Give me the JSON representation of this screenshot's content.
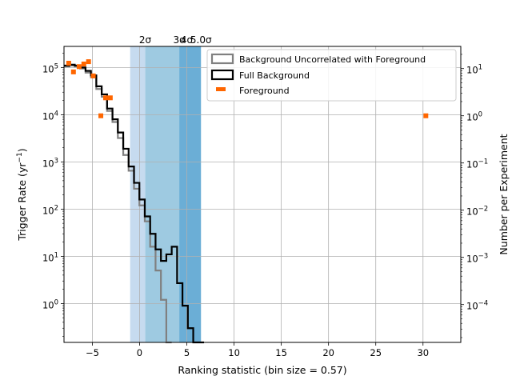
{
  "chart_data": {
    "type": "histogram",
    "title": "",
    "xlabel": "Ranking statistic (bin size = 0.57)",
    "ylabel": "Trigger Rate (yr$^{-1}$)",
    "ylabel_main": "Trigger Rate (yr",
    "ylabel_sup": "−1",
    "ylabel_close": ")",
    "y2label": "Number per Experiment",
    "xlim": [
      -8.0,
      34.0
    ],
    "ylim": [
      0.15,
      280000
    ],
    "y2lim": [
      1.58e-05,
      29.5
    ],
    "yscale": "log",
    "y2scale": "log",
    "grid": true,
    "legend_position": "top-right",
    "x_ticks": [
      -5,
      0,
      5,
      10,
      15,
      20,
      25,
      30
    ],
    "x_tick_labels": [
      "−5",
      "0",
      "5",
      "10",
      "15",
      "20",
      "25",
      "30"
    ],
    "y_ticks": [
      {
        "value": 1,
        "base": "10",
        "exp": "0"
      },
      {
        "value": 10,
        "base": "10",
        "exp": "1"
      },
      {
        "value": 100,
        "base": "10",
        "exp": "2"
      },
      {
        "value": 1000,
        "base": "10",
        "exp": "3"
      },
      {
        "value": 10000,
        "base": "10",
        "exp": "4"
      },
      {
        "value": 100000,
        "base": "10",
        "exp": "5"
      }
    ],
    "y2_ticks": [
      {
        "value": 0.0001,
        "base": "10",
        "exp": "−4"
      },
      {
        "value": 0.001,
        "base": "10",
        "exp": "−3"
      },
      {
        "value": 0.01,
        "base": "10",
        "exp": "−2"
      },
      {
        "value": 0.1,
        "base": "10",
        "exp": "−1"
      },
      {
        "value": 1,
        "base": "10",
        "exp": "0"
      },
      {
        "value": 10,
        "base": "10",
        "exp": "1"
      }
    ],
    "sigma_bands": [
      {
        "label": "2σ",
        "x_start": -1.0,
        "x_end": 0.6,
        "color": "#c6dbef"
      },
      {
        "label": "3σ",
        "x_start": 0.6,
        "x_end": 4.2,
        "color": "#9ecae1"
      },
      {
        "label": "4σ",
        "x_start": 4.2,
        "x_end": 5.0,
        "color": "#6baed6"
      },
      {
        "label": "5.0σ",
        "x_start": 5.0,
        "x_end": 6.5,
        "color": "#6baed6"
      }
    ],
    "series": [
      {
        "name": "Background Uncorrelated with Foreground",
        "kind": "step",
        "color": "#808080",
        "bin_edges": [
          -8.0,
          -7.43,
          -6.86,
          -6.29,
          -5.72,
          -5.15,
          -4.58,
          -4.01,
          -3.44,
          -2.87,
          -2.3,
          -1.73,
          -1.16,
          -0.59,
          -0.02,
          0.55,
          1.12,
          1.69,
          2.26,
          2.83,
          3.4
        ],
        "values": [
          105000,
          110000,
          105000,
          95000,
          78000,
          62000,
          35000,
          24000,
          12000,
          7000,
          3200,
          1400,
          650,
          270,
          120,
          55,
          16,
          5,
          1.2,
          0.15
        ]
      },
      {
        "name": "Full Background",
        "kind": "step",
        "color": "#000000",
        "bin_edges": [
          -8.0,
          -7.43,
          -6.86,
          -6.29,
          -5.72,
          -5.15,
          -4.58,
          -4.01,
          -3.44,
          -2.87,
          -2.3,
          -1.73,
          -1.16,
          -0.59,
          -0.02,
          0.55,
          1.12,
          1.69,
          2.26,
          2.83,
          3.4,
          3.97,
          4.54,
          5.11,
          5.68,
          6.25,
          6.82
        ],
        "values": [
          110000,
          115000,
          110000,
          100000,
          85000,
          68000,
          40000,
          27000,
          13500,
          8000,
          4200,
          1900,
          800,
          360,
          160,
          70,
          30,
          14,
          8,
          11,
          16,
          2.7,
          0.9,
          0.3,
          0.1,
          0.01
        ]
      },
      {
        "name": "Foreground",
        "kind": "points",
        "axis": "right",
        "color": "#ff6600",
        "x": [
          -7.5,
          -7.0,
          -6.4,
          -5.9,
          -5.4,
          -4.9,
          -4.1,
          -3.6,
          -3.1,
          30.3
        ],
        "values": [
          13.0,
          8.5,
          11.0,
          12.5,
          14.0,
          7.0,
          1.0,
          2.4,
          2.4,
          1.0
        ]
      }
    ]
  }
}
